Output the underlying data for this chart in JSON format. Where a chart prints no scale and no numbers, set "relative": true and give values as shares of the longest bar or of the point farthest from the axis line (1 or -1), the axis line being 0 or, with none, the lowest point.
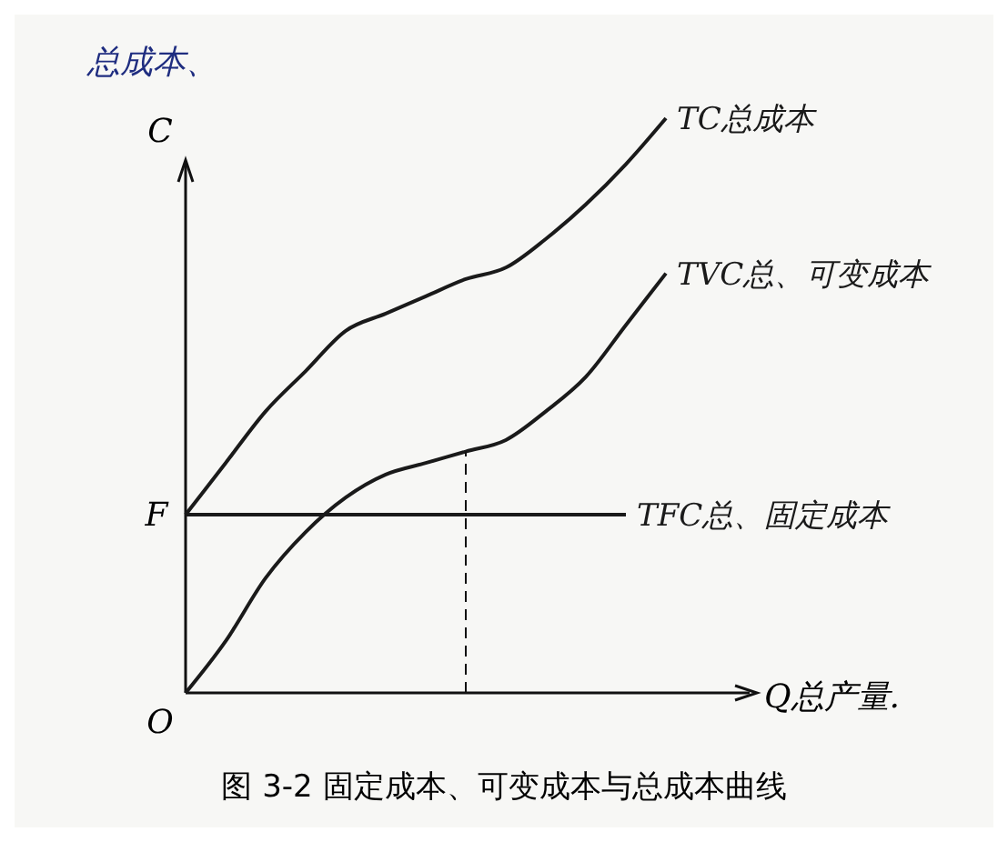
{
  "chart_data": {
    "type": "line",
    "relative": true,
    "title": "图 3-2  固定成本、可变成本与总成本曲线",
    "xlabel": "Q总产量.",
    "ylabel": "C",
    "categories": [
      null,
      null,
      null,
      null,
      null,
      null,
      null,
      null,
      null,
      null,
      null,
      null,
      null
    ],
    "series": [
      {
        "name": "TC总成本",
        "color": "#1a1a1a",
        "values": [
          0.31,
          0.4,
          0.49,
          0.56,
          0.63,
          0.66,
          0.69,
          0.72,
          0.74,
          0.79,
          0.85,
          0.92,
          1
        ]
      },
      {
        "name": "TVC总、可变成本",
        "color": "#1a1a1a",
        "values": [
          0,
          0.09,
          0.2,
          0.28,
          0.34,
          0.38,
          0.4,
          0.42,
          0.44,
          0.49,
          0.55,
          0.64,
          0.73
        ]
      },
      {
        "name": "TFC总、固定成本",
        "color": "#1a1a1a",
        "values": [
          0.31,
          0.31,
          0.31,
          0.31,
          0.31,
          0.31,
          0.31,
          0.31,
          0.31,
          0.31,
          0.31,
          0.31,
          null
        ]
      }
    ],
    "annotations": [
      "总成本、",
      "O",
      "F"
    ],
    "legend": false,
    "marker": "none",
    "line_style": "solid"
  }
}
